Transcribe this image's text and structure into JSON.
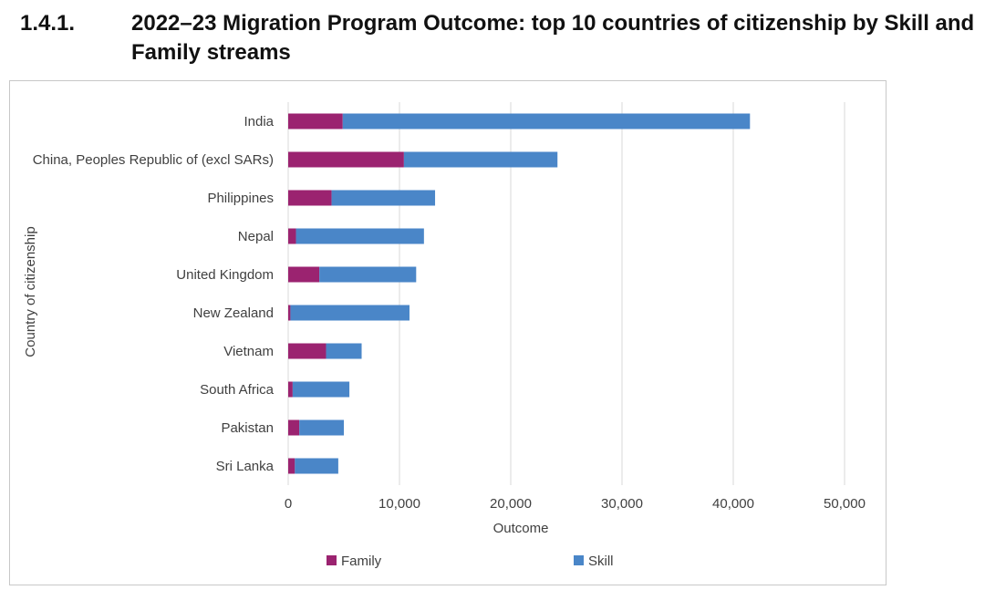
{
  "heading": {
    "number": "1.4.1.",
    "title": "2022–23 Migration Program Outcome: top 10 countries of citizenship by Skill and Family streams"
  },
  "colors": {
    "family": "#9B2370",
    "skill": "#4A86C8",
    "grid": "#d9d9d9"
  },
  "chart_data": {
    "type": "bar",
    "orientation": "horizontal",
    "stacked": true,
    "categories": [
      "India",
      "China, Peoples Republic of (excl SARs)",
      "Philippines",
      "Nepal",
      "United Kingdom",
      "New Zealand",
      "Vietnam",
      "South Africa",
      "Pakistan",
      "Sri Lanka"
    ],
    "series": [
      {
        "name": "Family",
        "values": [
          4900,
          10400,
          3900,
          700,
          2800,
          200,
          3400,
          400,
          1000,
          600
        ]
      },
      {
        "name": "Skill",
        "values": [
          36600,
          13800,
          9300,
          11500,
          8700,
          10700,
          3200,
          5100,
          4000,
          3900
        ]
      }
    ],
    "xlabel": "Outcome",
    "ylabel": "Country of citizenship",
    "xlim": [
      0,
      50000
    ],
    "xticks": [
      0,
      10000,
      20000,
      30000,
      40000,
      50000
    ],
    "xtick_labels": [
      "0",
      "10,000",
      "20,000",
      "30,000",
      "40,000",
      "50,000"
    ],
    "grid": true,
    "legend_position": "bottom"
  }
}
